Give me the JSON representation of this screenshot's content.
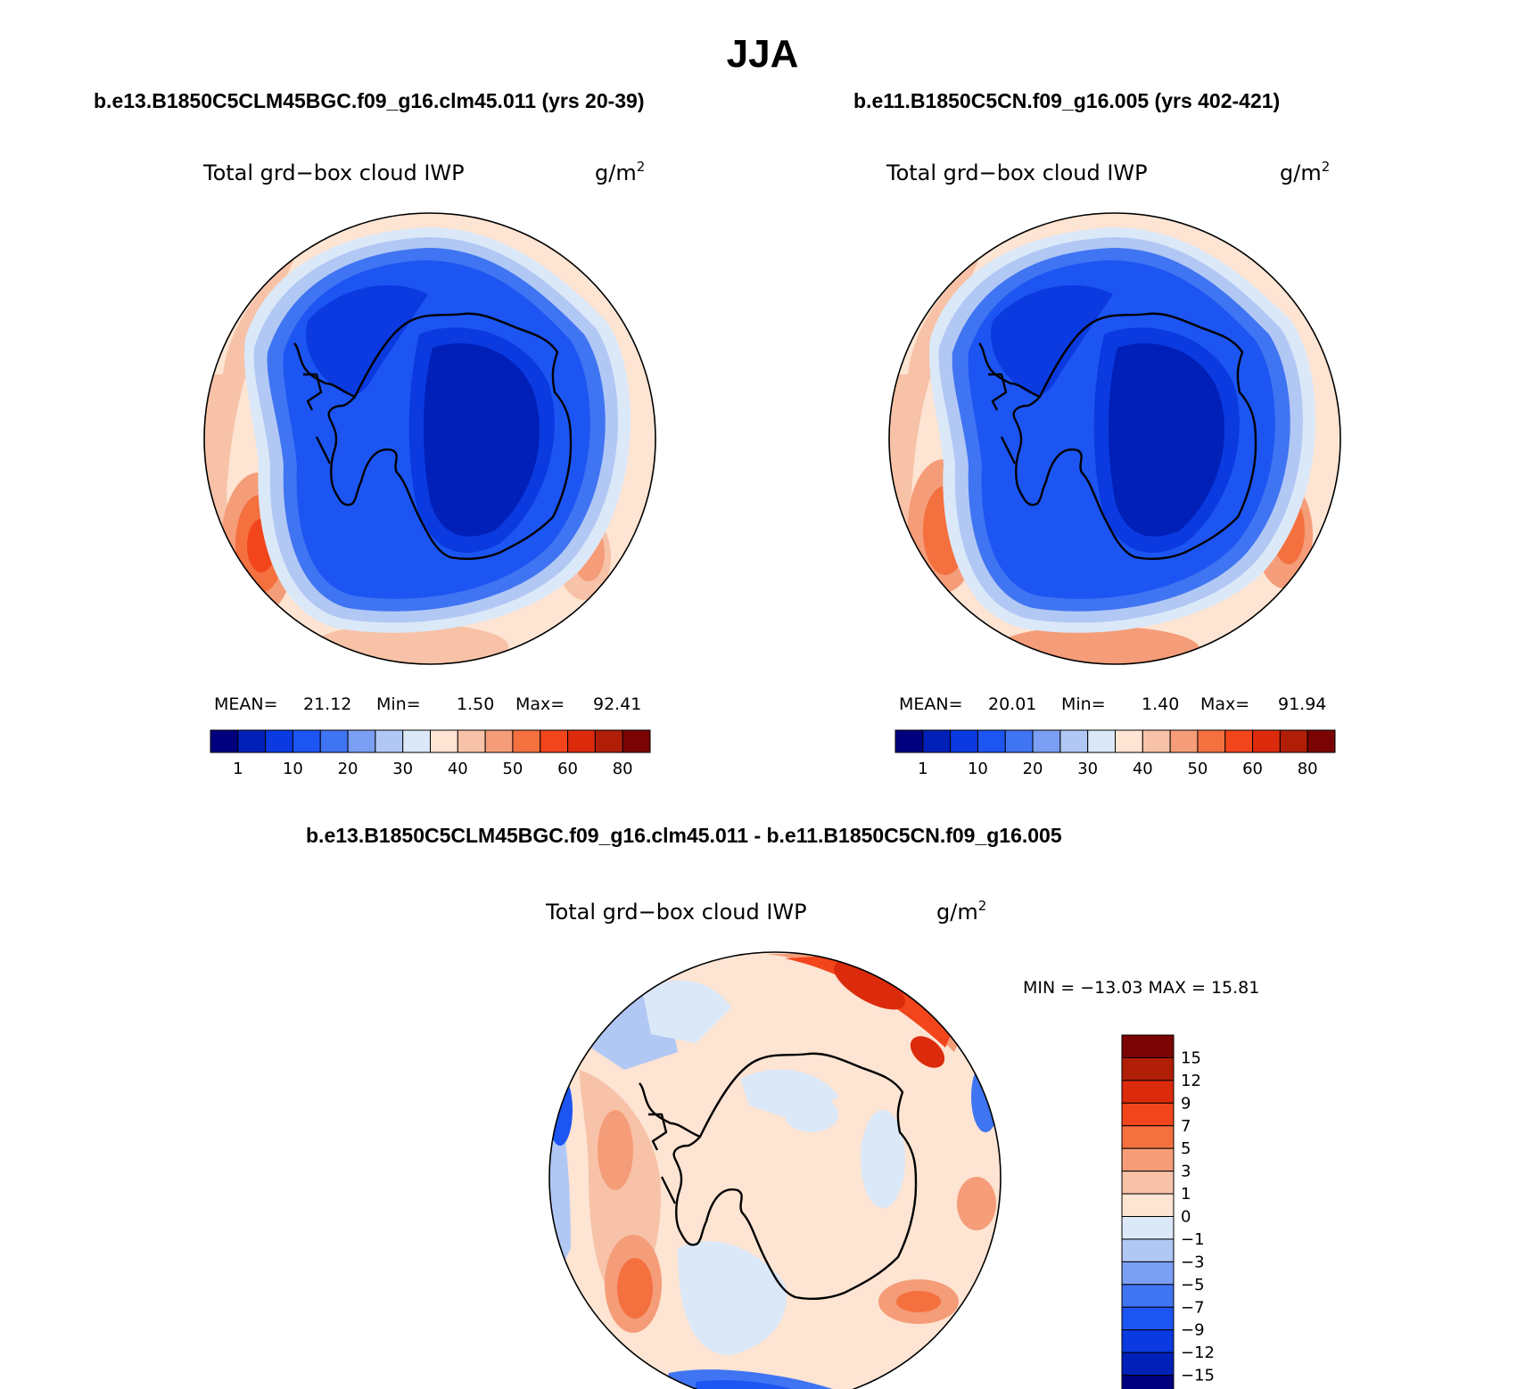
{
  "page": {
    "title": "JJA"
  },
  "colors": {
    "abs_palette": [
      "#00007f",
      "#0020b8",
      "#0a3ae0",
      "#1c55f2",
      "#3f74f2",
      "#7b9ff2",
      "#b1c8f5",
      "#dbe8f8",
      "#fde4d3",
      "#f7c2a7",
      "#f59c78",
      "#f4703f",
      "#f2451c",
      "#dc2b0c",
      "#b11e07",
      "#7a0403"
    ],
    "abs_levels": [
      "1",
      "10",
      "20",
      "30",
      "40",
      "50",
      "60",
      "80"
    ],
    "diff_palette": [
      "#7a0403",
      "#b11e07",
      "#dc2b0c",
      "#f2451c",
      "#f4703f",
      "#f59c78",
      "#f7c2a7",
      "#fde4d3",
      "#dbe8f8",
      "#b1c8f5",
      "#7b9ff2",
      "#3f74f2",
      "#1c55f2",
      "#0a3ae0",
      "#0020b8",
      "#00007f"
    ],
    "diff_levels": [
      "15",
      "12",
      "9",
      "7",
      "5",
      "3",
      "1",
      "0",
      "−1",
      "−3",
      "−5",
      "−7",
      "−9",
      "−12",
      "−15"
    ]
  },
  "panels": {
    "left": {
      "case_title": "b.e13.B1850C5CLM45BGC.f09_g16.clm45.011 (yrs 20-39)",
      "field_name": "Total grd−box cloud IWP",
      "units_base": "g/m",
      "units_exp": "2",
      "stats": {
        "mean_label": "MEAN=",
        "mean_value": "21.12",
        "min_label": "Min=",
        "min_value": "1.50",
        "max_label": "Max=",
        "max_value": "92.41"
      }
    },
    "right": {
      "case_title": "b.e11.B1850C5CN.f09_g16.005 (yrs 402-421)",
      "field_name": "Total grd−box cloud IWP",
      "units_base": "g/m",
      "units_exp": "2",
      "stats": {
        "mean_label": "MEAN=",
        "mean_value": "20.01",
        "min_label": "Min=",
        "min_value": "1.40",
        "max_label": "Max=",
        "max_value": "91.94"
      }
    },
    "diff": {
      "case_title": "b.e13.B1850C5CLM45BGC.f09_g16.clm45.011 - b.e11.B1850C5CN.f09_g16.005",
      "field_name": "Total grd−box cloud IWP",
      "units_base": "g/m",
      "units_exp": "2",
      "minmax": "MIN = −13.03 MAX =  15.81"
    }
  }
}
